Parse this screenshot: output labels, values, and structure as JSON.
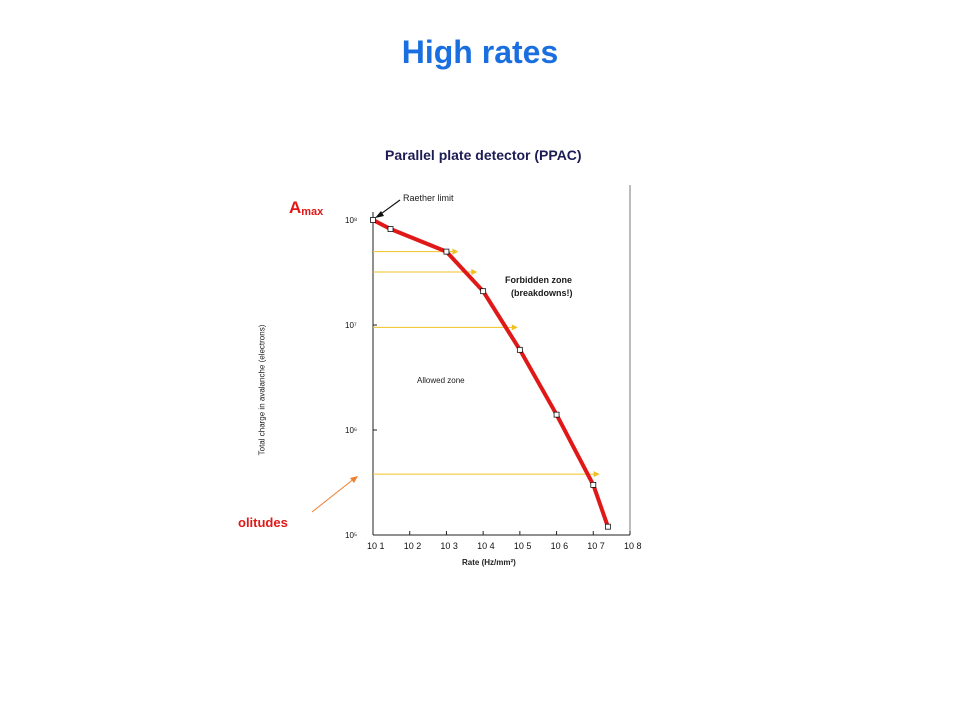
{
  "slide": {
    "title": "High rates"
  },
  "figure": {
    "title": "Parallel plate detector (PPAC)",
    "amax_main": "A",
    "amax_sub": "max",
    "amplitudes_label": "olitudes",
    "raether_label": "Raether limit",
    "forbidden_line1": "Forbidden zone",
    "forbidden_line2": "(breakdowns!)",
    "allowed_label": "Allowed zone",
    "colors": {
      "title_blue": "#1a6fe0",
      "curve_red": "#e01818",
      "guide_yellow": "#f0c020",
      "arrow_orange": "#f08030"
    }
  },
  "chart_data": {
    "type": "line",
    "title": "Parallel plate detector (PPAC)",
    "xlabel": "Rate (Hz/mm²)",
    "ylabel": "Total charge in avalanche (electrons)",
    "xscale": "log",
    "yscale": "log",
    "xlim": [
      10,
      100000000
    ],
    "ylim": [
      100000,
      100000000
    ],
    "x_ticks": [
      "10 1",
      "10 2",
      "10 3",
      "10 4",
      "10 5",
      "10 6",
      "10 7",
      "10 8"
    ],
    "y_ticks": [
      "10⁵",
      "10⁶",
      "10⁷",
      "10⁸"
    ],
    "series": [
      {
        "x": [
          10,
          30,
          1000,
          10000,
          100000,
          1000000,
          10000000,
          25000000
        ],
        "y": [
          100000000,
          82000000,
          50000000,
          21000000,
          5800000,
          1400000,
          300000,
          120000
        ]
      }
    ],
    "guide_levels": [
      50000000,
      32000000,
      9500000,
      380000
    ],
    "annotations": [
      "Raether limit",
      "Forbidden zone (breakdowns!)",
      "Allowed zone"
    ]
  }
}
